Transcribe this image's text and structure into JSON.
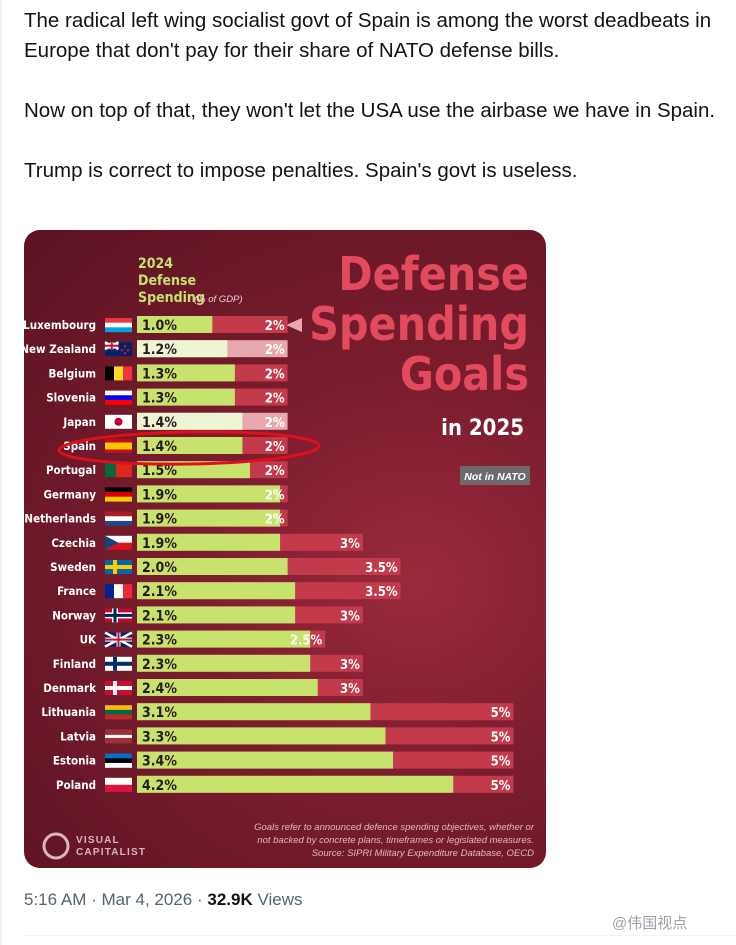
{
  "tweet": {
    "paragraphs": [
      "The radical left wing socialist govt of Spain is among the worst deadbeats in Europe that don't pay for their share of NATO defense bills.",
      "Now on top of that, they won't let the USA use the airbase we have in Spain.",
      "Trump is correct to impose penalties. Spain's govt is useless."
    ],
    "time": "5:16 AM",
    "date": "Mar 4, 2026",
    "views_count": "32.9K",
    "views_label": "Views",
    "watermark": "@伟国视点"
  },
  "chart_data": {
    "type": "bar",
    "title_lines": [
      "Defense",
      "Spending",
      "Goals"
    ],
    "subtitle": "in 2025",
    "legend_title": [
      "2024",
      "Defense",
      "Spending"
    ],
    "legend_unit": "(% of GDP)",
    "not_in_nato_label": "Not in NATO",
    "xlim": [
      0,
      5
    ],
    "categories": [
      "Luxembourg",
      "New Zealand",
      "Belgium",
      "Slovenia",
      "Japan",
      "Spain",
      "Portugal",
      "Germany",
      "Netherlands",
      "Czechia",
      "Sweden",
      "France",
      "Norway",
      "UK",
      "Finland",
      "Denmark",
      "Lithuania",
      "Latvia",
      "Estonia",
      "Poland"
    ],
    "series": [
      {
        "name": "2024 Defense Spending",
        "values": [
          1.0,
          1.2,
          1.3,
          1.3,
          1.4,
          1.4,
          1.5,
          1.9,
          1.9,
          1.9,
          2.0,
          2.1,
          2.1,
          2.3,
          2.3,
          2.4,
          3.1,
          3.3,
          3.4,
          4.2
        ]
      },
      {
        "name": "Goals",
        "values": [
          2,
          2,
          2,
          2,
          2,
          2,
          2,
          2,
          2,
          3,
          3.5,
          3.5,
          3,
          2.5,
          3,
          3,
          5,
          5,
          5,
          5
        ]
      }
    ],
    "labels_2024": [
      "1.0%",
      "1.2%",
      "1.3%",
      "1.3%",
      "1.4%",
      "1.4%",
      "1.5%",
      "1.9%",
      "1.9%",
      "1.9%",
      "2.0%",
      "2.1%",
      "2.1%",
      "2.3%",
      "2.3%",
      "2.4%",
      "3.1%",
      "3.3%",
      "3.4%",
      "4.2%"
    ],
    "labels_goal": [
      "2%",
      "2%",
      "2%",
      "2%",
      "2%",
      "2%",
      "2%",
      "2%",
      "2%",
      "3%",
      "3.5%",
      "3.5%",
      "3%",
      "2.5%",
      "3%",
      "3%",
      "5%",
      "5%",
      "5%",
      "5%"
    ],
    "not_in_nato": [
      "New Zealand",
      "Japan"
    ],
    "highlighted": "Spain",
    "colors": {
      "spending": "#c7e36e",
      "goal": "#c33a4b",
      "goal_non_nato": "#e8a8b0",
      "spending_non_nato": "#eef5d5",
      "title": "#e24a5e",
      "circle": "#e0101a"
    },
    "footnote": [
      "Goals refer to announced defence spending objectives, whether or",
      "not backed by concrete plans, timeframes or legislated measures.",
      "Source: SIPRI Military Expenditure Database, OECD"
    ],
    "brand": [
      "VISUAL",
      "CAPITALIST"
    ]
  }
}
